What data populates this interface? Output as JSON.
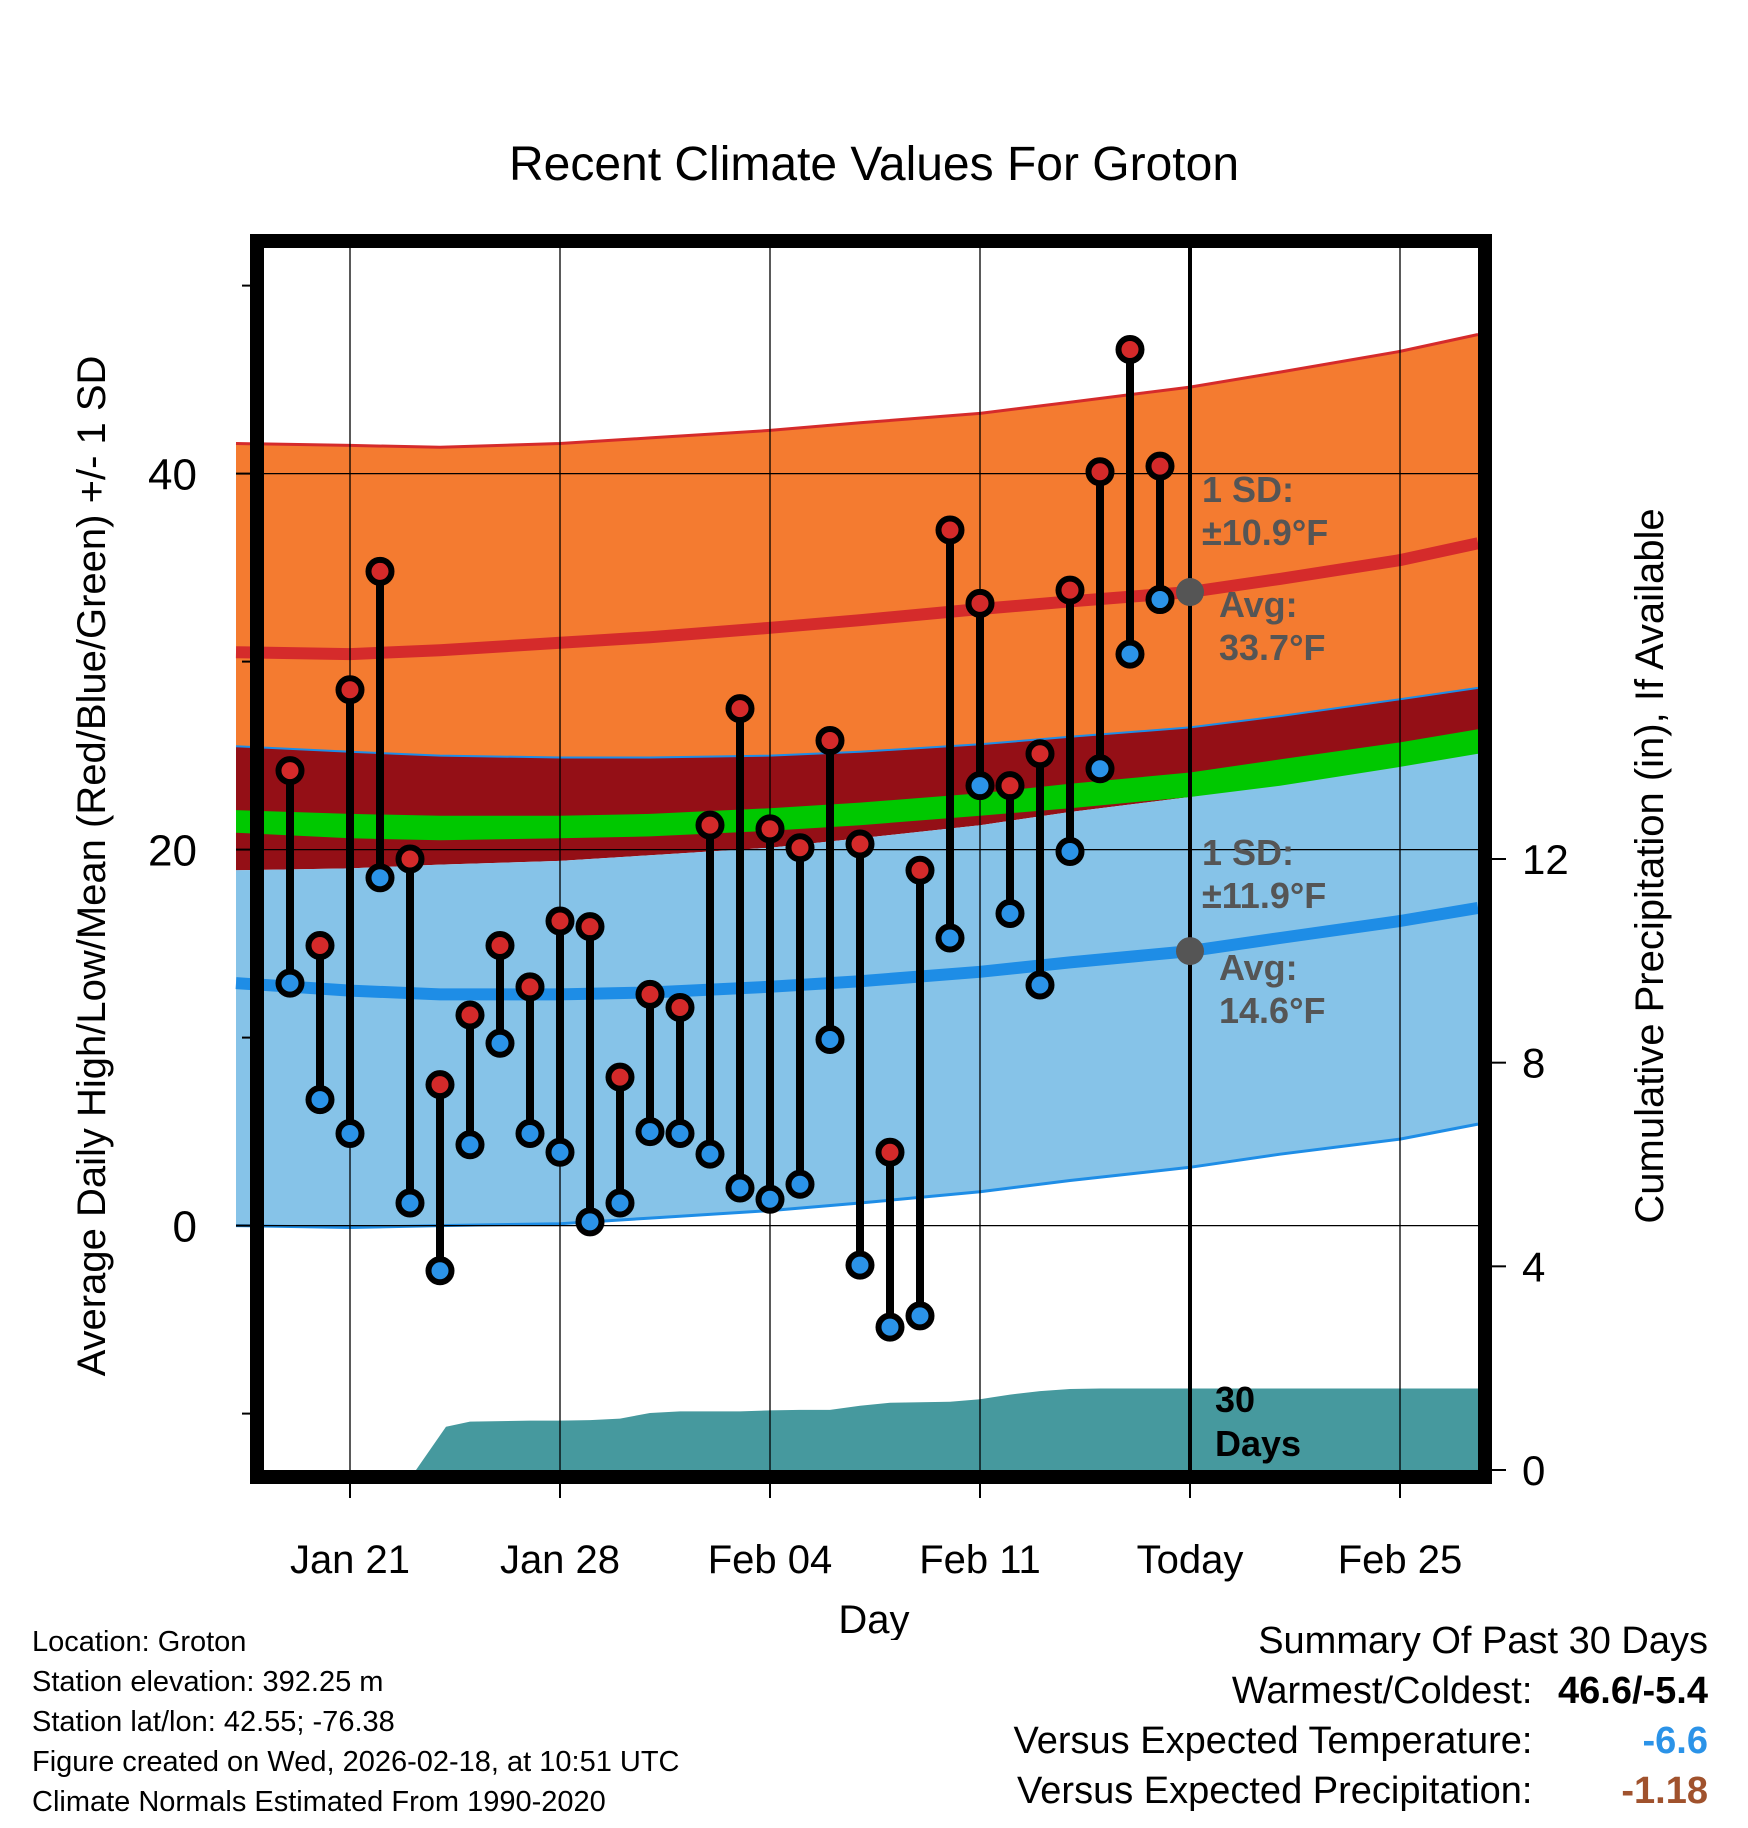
{
  "chart_data": {
    "type": "line",
    "title": "Recent Climate Values For Groton",
    "xlabel": "Day",
    "ylabel": "Average Daily High/Low/Mean (Red/Blue/Green) +/- 1 SD",
    "y2label": "Cumulative Precipitation (in), If Available",
    "ylim": [
      -13,
      52
    ],
    "y_ticks": [
      "0",
      "20",
      "40"
    ],
    "y_tick_values": [
      0,
      20,
      40
    ],
    "y2lim": [
      0,
      24
    ],
    "y2_ticks": [
      "0",
      "4",
      "8",
      "12"
    ],
    "y2_tick_values": [
      0,
      4,
      8,
      12
    ],
    "xlim": [
      -3.8,
      37.6
    ],
    "x_ticks": [
      "Jan 21",
      "Jan 28",
      "Feb 04",
      "Feb 11",
      "Today",
      "Feb 25"
    ],
    "x_tick_days": [
      0,
      7,
      14,
      21,
      28,
      35
    ],
    "today_day": 28,
    "period_label": "30 Days",
    "days": [
      -2,
      -1,
      0,
      1,
      2,
      3,
      4,
      5,
      6,
      7,
      8,
      9,
      10,
      11,
      12,
      13,
      14,
      15,
      16,
      17,
      18,
      19,
      20,
      21,
      22,
      23,
      24,
      25,
      26,
      27
    ],
    "daily_high": [
      24.2,
      14.9,
      28.5,
      34.8,
      19.5,
      7.5,
      11.2,
      14.9,
      12.7,
      16.2,
      15.9,
      7.9,
      12.3,
      11.6,
      21.3,
      27.5,
      21.1,
      20.1,
      25.8,
      20.3,
      3.9,
      18.9,
      37.0,
      33.1,
      23.4,
      25.1,
      33.8,
      40.1,
      46.6,
      40.4
    ],
    "daily_low": [
      12.9,
      6.7,
      4.9,
      18.5,
      1.2,
      -2.4,
      4.3,
      9.7,
      4.9,
      3.9,
      0.2,
      1.2,
      5.0,
      4.9,
      3.8,
      2.0,
      1.4,
      2.2,
      9.9,
      -2.1,
      -5.4,
      -4.8,
      15.3,
      23.4,
      16.6,
      12.8,
      19.9,
      24.3,
      30.4,
      33.3
    ],
    "normal_days": [
      -3.8,
      0,
      3,
      7,
      10,
      14,
      17,
      21,
      24,
      28,
      31,
      35,
      37.6
    ],
    "normal_high_mean": [
      30.5,
      30.4,
      30.6,
      31.0,
      31.3,
      31.8,
      32.2,
      32.8,
      33.2,
      33.7,
      34.4,
      35.4,
      36.3
    ],
    "normal_high_upper": [
      41.6,
      41.5,
      41.4,
      41.6,
      41.9,
      42.3,
      42.7,
      43.2,
      43.8,
      44.6,
      45.4,
      46.5,
      47.4
    ],
    "normal_high_lower": [
      25.5,
      25.2,
      25.0,
      24.9,
      24.9,
      25.0,
      25.2,
      25.6,
      26.0,
      26.5,
      27.1,
      28.0,
      28.6
    ],
    "normal_mean_upper": [
      22.1,
      21.9,
      21.8,
      21.8,
      21.9,
      22.2,
      22.5,
      23.0,
      23.5,
      24.1,
      24.8,
      25.7,
      26.4
    ],
    "normal_mean_lower": [
      20.9,
      20.6,
      20.5,
      20.6,
      20.7,
      21.0,
      21.3,
      21.8,
      22.2,
      22.8,
      23.4,
      24.4,
      25.1
    ],
    "normal_low_mean": [
      12.9,
      12.5,
      12.3,
      12.3,
      12.4,
      12.7,
      13.0,
      13.5,
      14.0,
      14.6,
      15.3,
      16.2,
      16.9
    ],
    "normal_low_upper": [
      18.9,
      19.0,
      19.2,
      19.4,
      19.7,
      20.1,
      20.6,
      21.3,
      22.0,
      22.8,
      23.5,
      24.5,
      25.3
    ],
    "normal_low_lower": [
      0.0,
      -0.1,
      0.0,
      0.1,
      0.4,
      0.8,
      1.2,
      1.8,
      2.4,
      3.1,
      3.8,
      4.6,
      5.4
    ],
    "precip_days": [
      -3.8,
      0,
      2.2,
      3.2,
      4,
      6,
      7,
      8,
      9,
      10,
      11,
      12,
      13,
      14,
      15,
      16,
      17,
      18,
      19,
      20,
      21,
      22,
      23,
      24,
      25,
      26,
      27,
      28,
      29,
      30,
      31,
      32,
      33,
      34,
      35,
      36,
      37.6
    ],
    "precip_cumulative": [
      0,
      0,
      0,
      0.85,
      0.95,
      0.97,
      0.97,
      0.98,
      1.01,
      1.12,
      1.15,
      1.15,
      1.15,
      1.17,
      1.18,
      1.18,
      1.26,
      1.32,
      1.33,
      1.34,
      1.39,
      1.48,
      1.55,
      1.59,
      1.6,
      1.6,
      1.6,
      1.6,
      1.6,
      1.6,
      1.6,
      1.6,
      1.6,
      1.6,
      1.6,
      1.6,
      1.6
    ],
    "high_sd_label": [
      "1 SD:",
      "±10.9°F"
    ],
    "high_avg_label": [
      "Avg:",
      "33.7°F"
    ],
    "low_sd_label": [
      "1 SD:",
      "±11.9°F"
    ],
    "low_avg_label": [
      "Avg:",
      "14.6°F"
    ],
    "high_avg_value": 33.7,
    "low_avg_value": 14.6
  },
  "colors": {
    "high_band": "#f47b30",
    "high_line": "#d52b2b",
    "dark_band": "#940f16",
    "mean_band": "#00c800",
    "low_band": "#86c3e8",
    "low_line": "#1e8de6",
    "precip": "#46999e",
    "dot_high": "#d42a2a",
    "dot_low": "#2b93e8",
    "label_gray": "#555555",
    "summary_blue": "#2b93e8",
    "summary_brown": "#a0522d"
  },
  "info": {
    "location": "Location: Groton",
    "elevation": "Station elevation: 392.25 m",
    "latlon": "Station lat/lon: 42.55; -76.38",
    "created": "Figure created on Wed, 2026-02-18, at 10:51 UTC",
    "normals": "Climate Normals Estimated From 1990-2020"
  },
  "summary": {
    "title": "Summary Of Past 30 Days",
    "warmest_label": "Warmest/Coldest:",
    "warmest_value": "46.6/-5.4",
    "temp_label": "Versus Expected Temperature:",
    "temp_value": "-6.6",
    "precip_label": "Versus Expected Precipitation:",
    "precip_value": "-1.18"
  }
}
